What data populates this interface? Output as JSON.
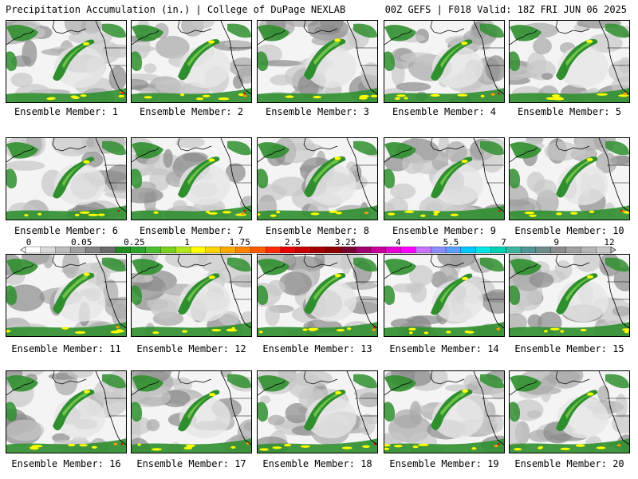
{
  "header": {
    "left": "Precipitation Accumulation (in.) | College of DuPage NEXLAB",
    "right": "00Z GEFS | F018 Valid: 18Z FRI JUN 06 2025"
  },
  "member_prefix": "Ensemble Member: ",
  "members": [
    "1",
    "2",
    "3",
    "4",
    "5",
    "6",
    "7",
    "8",
    "9",
    "10",
    "11",
    "12",
    "13",
    "14",
    "15",
    "16",
    "17",
    "18",
    "19",
    "20"
  ],
  "legend": {
    "labels": [
      "0",
      "0.05",
      "0.25",
      "1",
      "1.75",
      "2.5",
      "3.25",
      "4",
      "5.5",
      "7",
      "9",
      "12"
    ],
    "colors": [
      "#ffffff",
      "#d9d9d9",
      "#bcbcbc",
      "#a0a0a0",
      "#848484",
      "#6a6a6a",
      "#1e8c1e",
      "#2aa32a",
      "#4bbf32",
      "#79d21e",
      "#b4e61e",
      "#ffff00",
      "#ffd200",
      "#ffaa00",
      "#ff8200",
      "#ff5a00",
      "#ff2800",
      "#e60000",
      "#c80000",
      "#a50000",
      "#8c0000",
      "#7a0030",
      "#a0006e",
      "#c8009b",
      "#e600d2",
      "#ff00ff",
      "#c873ff",
      "#8c8cff",
      "#5aa0ff",
      "#00c8ff",
      "#00e6e6",
      "#00d2b4",
      "#3cb4a0",
      "#509696",
      "#6e8c8c",
      "#8c8c8c",
      "#a0a0a0",
      "#b4b4b4",
      "#c8c8c8"
    ]
  },
  "map": {
    "colors": {
      "light": "#c8c8c8",
      "mid": "#a8a8a8",
      "dark": "#8a8a8a",
      "green": "#2f8f2f",
      "lgreen": "#6fc24a",
      "yellow": "#ffff00",
      "orange": "#ff9900",
      "red": "#e60000"
    }
  }
}
